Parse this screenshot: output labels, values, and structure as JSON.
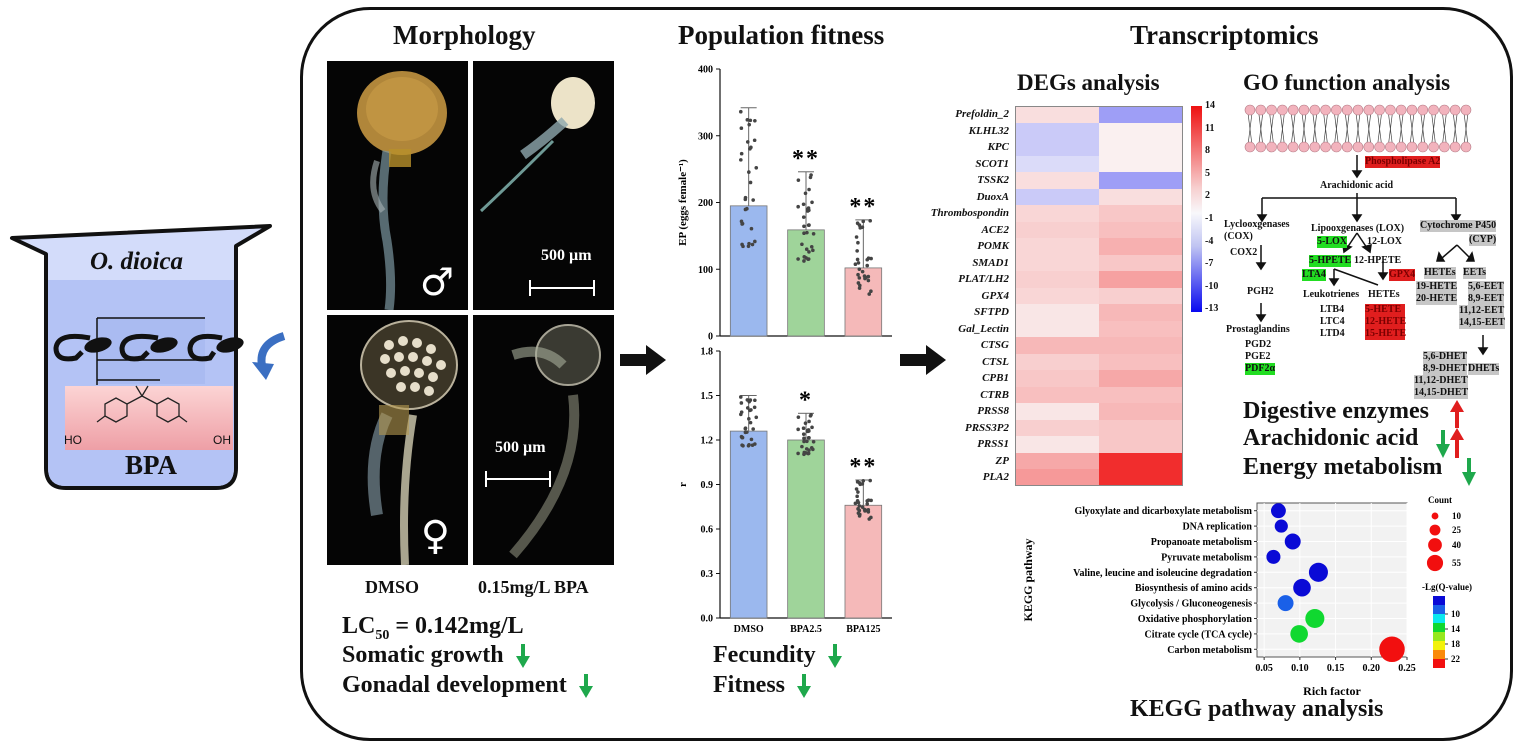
{
  "beaker": {
    "organism": "O. dioica",
    "compound": "BPA",
    "ho_left": "HO",
    "ho_right": "OH"
  },
  "morphology": {
    "title": "Morphology",
    "scale_bar": "500 µm",
    "male_symbol": "♂",
    "female_symbol": "♀",
    "captions": [
      "DMSO",
      "0.15mg/L BPA"
    ],
    "lc50_prefix": "LC",
    "lc50_sub": "50",
    "lc50_value": " = 0.142mg/L",
    "effects": [
      {
        "label": "Somatic growth",
        "direction": "down"
      },
      {
        "label": "Gonadal development",
        "direction": "down"
      }
    ]
  },
  "fitness": {
    "title": "Population fitness",
    "effects": [
      {
        "label": "Fecundity",
        "direction": "down"
      },
      {
        "label": "Fitness",
        "direction": "down"
      }
    ]
  },
  "transcriptomics": {
    "title": "Transcriptomics",
    "degs_title": "DEGs analysis",
    "go_title": "GO function analysis",
    "kegg_title": "KEGG pathway analysis",
    "summary": [
      {
        "label": "Digestive enzymes",
        "arrows": [
          "up"
        ]
      },
      {
        "label": "Arachidonic acid",
        "arrows": [
          "down",
          "up"
        ]
      },
      {
        "label": "Energy metabolism",
        "arrows": [
          "down"
        ]
      }
    ]
  },
  "pathway": {
    "enzyme_top": "Phospholipase A2",
    "arachidonic": "Arachidonic acid",
    "cox_title": "Lyclooxgenases\n(COX)",
    "cox2": "COX2",
    "pgh2": "PGH2",
    "prostaglandins": "Prostaglandins",
    "pgs": [
      "PGD2",
      "PGE2",
      "PDF2α"
    ],
    "lox_title": "Lipooxgenases (LOX)",
    "lox5": "5-LOX",
    "lox12": "12-LOX",
    "hpete5": "5-HPETE",
    "hpete12": "12-HPETE",
    "lta4": "LTA4",
    "gpx4": "GPX4",
    "leukotrienes": "Leukotrienes",
    "hetes": "HETEs",
    "lts": [
      "LTB4",
      "LTC4",
      "LTD4"
    ],
    "hete_list": [
      "5-HETE",
      "12-HETE",
      "15-HETE"
    ],
    "cyp_title": "Cytochrome P450",
    "cyp_abbr": "(CYP)",
    "cyp_hetes": "HETEs",
    "cyp_eets": "EETs",
    "cyp_hete_list": [
      "19-HETE",
      "20-HETE"
    ],
    "eet_list": [
      "5,6-EET",
      "8,9-EET",
      "11,12-EET",
      "14,15-EET"
    ],
    "dhet_list": [
      "5,6-DHET",
      "8,9-DHET",
      "11,12-DHET",
      "14,15-DHET"
    ],
    "dhets": "DHETs"
  },
  "chart_data": [
    {
      "type": "bar",
      "title": "",
      "categories": [
        "DMSO",
        "BPA2.5",
        "BPA125"
      ],
      "values": [
        195,
        159,
        102
      ],
      "error_upper": [
        342,
        246,
        174
      ],
      "significance": [
        "",
        "**",
        "**"
      ],
      "colors": [
        "#9bb8ee",
        "#9fd49a",
        "#f5b9b9"
      ],
      "xlabel": "",
      "ylabel": "EP (eggs female⁻¹)",
      "ylim": [
        0,
        400
      ],
      "yticks": [
        0,
        100,
        200,
        300,
        400
      ]
    },
    {
      "type": "bar",
      "title": "",
      "categories": [
        "DMSO",
        "BPA2.5",
        "BPA125"
      ],
      "values": [
        1.26,
        1.2,
        0.76
      ],
      "error_upper": [
        1.5,
        1.38,
        0.93
      ],
      "significance": [
        "",
        "*",
        "**"
      ],
      "colors": [
        "#9bb8ee",
        "#9fd49a",
        "#f5b9b9"
      ],
      "xlabel": "",
      "ylabel": "r",
      "ylim": [
        0,
        1.8
      ],
      "yticks": [
        "0.0",
        "0.3",
        "0.6",
        "0.9",
        "1.2",
        "1.5",
        "1.8"
      ]
    },
    {
      "type": "heatmap",
      "title": "DEGs analysis",
      "rows": [
        "Prefoldin_2",
        "KLHL32",
        "KPC",
        "SCOT1",
        "TSSK2",
        "DuoxA",
        "Thrombospondin",
        "ACE2",
        "POMK",
        "SMAD1",
        "PLAT/LH2",
        "GPX4",
        "SFTPD",
        "Gal_Lectin",
        "CTSG",
        "CTSL",
        "CPB1",
        "CTRB",
        "PRSS8",
        "PRSS3P2",
        "PRSS1",
        "ZP",
        "PLA2"
      ],
      "columns": [
        "BPA2.5",
        "BPA125"
      ],
      "values": [
        [
          1.5,
          -5
        ],
        [
          -2.5,
          0.3
        ],
        [
          -2.5,
          0.3
        ],
        [
          -1.5,
          0.3
        ],
        [
          1.5,
          -5
        ],
        [
          -2.5,
          1.5
        ],
        [
          2,
          3
        ],
        [
          2.5,
          3.5
        ],
        [
          2,
          4.5
        ],
        [
          2,
          3
        ],
        [
          2.5,
          5.5
        ],
        [
          2,
          2.5
        ],
        [
          1,
          4
        ],
        [
          1,
          3.5
        ],
        [
          4,
          4
        ],
        [
          2.5,
          3.5
        ],
        [
          3,
          5
        ],
        [
          3.5,
          3.5
        ],
        [
          1,
          4
        ],
        [
          2.5,
          3
        ],
        [
          1,
          3
        ],
        [
          5,
          13
        ],
        [
          6,
          13
        ]
      ],
      "colorbar_ticks": [
        14,
        11,
        8,
        5,
        2,
        -1,
        -4,
        -7,
        -10,
        -13
      ],
      "colorbar_range": [
        -13,
        14
      ]
    },
    {
      "type": "scatter",
      "title": "KEGG pathway analysis",
      "xlabel": "Rich factor",
      "ylabel": "KEGG pathway",
      "xlim": [
        0.04,
        0.25
      ],
      "xticks": [
        "0.05",
        "0.10",
        "0.15",
        "0.20",
        "0.25"
      ],
      "categories": [
        "Glyoxylate and dicarboxylate metabolism",
        "DNA replication",
        "Propanoate metabolism",
        "Pyruvate metabolism",
        "Valine, leucine and isoleucine degradation",
        "Biosynthesis of amino acids",
        "Glycolysis / Gluconeogenesis",
        "Oxidative phosphorylation",
        "Citrate cycle (TCA cycle)",
        "Carbon metabolism"
      ],
      "rich_factor": [
        0.07,
        0.074,
        0.09,
        0.063,
        0.126,
        0.103,
        0.08,
        0.121,
        0.099,
        0.229
      ],
      "count": [
        14,
        10,
        17,
        12,
        27,
        22,
        17,
        27,
        22,
        55
      ],
      "neg_lg_q": [
        7,
        7,
        8,
        7,
        8,
        8,
        11,
        15,
        17,
        24
      ],
      "legend_count_title": "Count",
      "legend_count_values": [
        10,
        25,
        40,
        55
      ],
      "legend_color_title": "-Lg(Q-value)",
      "legend_color_ticks": [
        10,
        14,
        18,
        22
      ]
    }
  ]
}
